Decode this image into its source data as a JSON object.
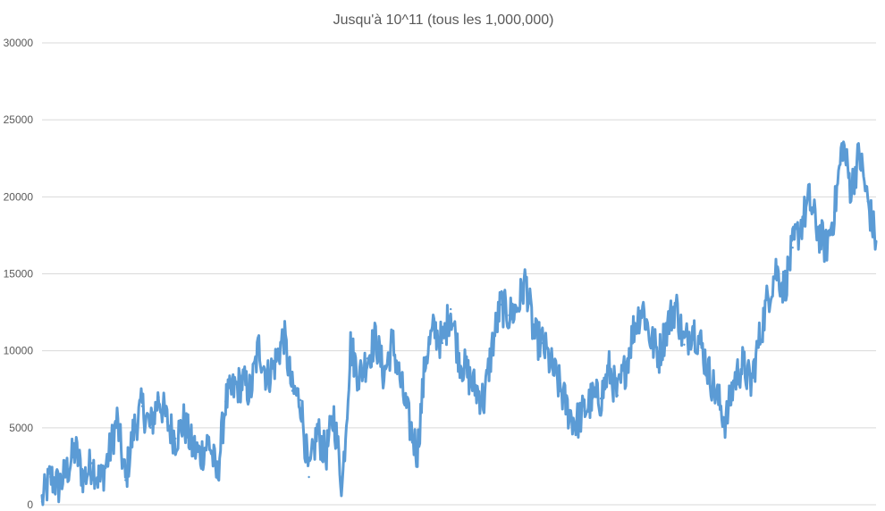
{
  "chart_data": {
    "type": "line",
    "title": "Jusqu'à 10^11 (tous les 1,000,000)",
    "xlabel": "",
    "ylabel": "",
    "ylim": [
      0,
      30000
    ],
    "yticks": [
      "0",
      "5000",
      "10000",
      "15000",
      "20000",
      "25000",
      "30000"
    ],
    "grid": true,
    "legend": "none",
    "x_range": [
      0,
      100000
    ],
    "series": [
      {
        "color": "#5b9bd5",
        "x": [
          0,
          1000,
          2000,
          3000,
          4000,
          5000,
          6000,
          7000,
          8000,
          9000,
          10000,
          11000,
          12000,
          13000,
          14000,
          15000,
          16000,
          17000,
          18000,
          19000,
          20000,
          21000,
          22000,
          23000,
          24000,
          25000,
          26000,
          27000,
          28000,
          29000,
          30000,
          31000,
          32000,
          33000,
          34000,
          35000,
          36000,
          37000,
          38000,
          39000,
          40000,
          41000,
          42000,
          43000,
          44000,
          45000,
          46000,
          47000,
          48000,
          49000,
          50000,
          51000,
          52000,
          53000,
          54000,
          55000,
          56000,
          57000,
          58000,
          59000,
          60000,
          61000,
          62000,
          63000,
          64000,
          65000,
          66000,
          67000,
          68000,
          69000,
          70000,
          71000,
          72000,
          73000,
          74000,
          75000,
          76000,
          77000,
          78000,
          79000,
          80000,
          81000,
          82000,
          83000,
          84000,
          85000,
          86000,
          87000,
          88000,
          89000,
          90000,
          91000,
          92000,
          93000,
          94000,
          95000,
          96000,
          97000,
          98000,
          99000,
          100000
        ],
        "values": [
          200,
          1800,
          1200,
          2200,
          3600,
          1700,
          2700,
          1500,
          3200,
          5500,
          1600,
          4900,
          6400,
          5000,
          7000,
          5400,
          4300,
          5400,
          3800,
          3200,
          4200,
          1800,
          6700,
          7500,
          8000,
          7300,
          10300,
          8200,
          9300,
          11000,
          7400,
          6800,
          1800,
          4800,
          3200,
          5800,
          1200,
          10300,
          8300,
          9500,
          10800,
          8400,
          10600,
          7900,
          5400,
          3400,
          9600,
          11400,
          10500,
          12700,
          9600,
          8500,
          7500,
          6800,
          10400,
          13000,
          12300,
          12800,
          14600,
          10900,
          10500,
          9100,
          7800,
          6200,
          5300,
          6100,
          6900,
          6900,
          8800,
          7100,
          9000,
          11600,
          12900,
          10700,
          9800,
          11700,
          13000,
          10400,
          11600,
          10400,
          8500,
          6900,
          5400,
          8100,
          9100,
          7800,
          10700,
          13400,
          15300,
          14000,
          16700,
          18200,
          19800,
          17800,
          16700,
          19000,
          23500,
          20500,
          22800,
          19700,
          17100
        ]
      }
    ]
  }
}
